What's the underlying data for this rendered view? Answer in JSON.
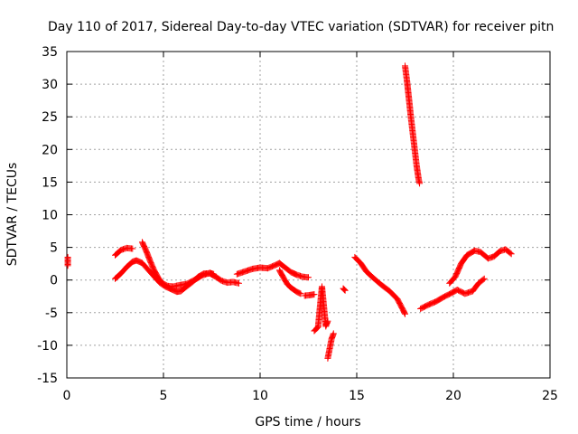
{
  "chart_data": {
    "type": "scatter",
    "title": "Day 110 of 2017, Sidereal Day-to-day VTEC variation (SDTVAR) for receiver pitn",
    "xlabel": "GPS time / hours",
    "ylabel": "SDTVAR / TECUs",
    "xlim": [
      0,
      25
    ],
    "ylim": [
      -15,
      35
    ],
    "xticks": [
      0,
      5,
      10,
      15,
      20,
      25
    ],
    "yticks": [
      -15,
      -10,
      -5,
      0,
      5,
      10,
      15,
      20,
      25,
      30,
      35
    ],
    "grid": true,
    "marker": "+",
    "color": "#ff0000",
    "series": [
      {
        "name": "SDTVAR",
        "segments": [
          [
            [
              0.05,
              3.5
            ],
            [
              0.05,
              2.2
            ]
          ],
          [
            [
              2.5,
              3.8
            ],
            [
              2.8,
              4.6
            ],
            [
              3.1,
              4.9
            ],
            [
              3.4,
              4.8
            ]
          ],
          [
            [
              2.5,
              0.2
            ],
            [
              2.8,
              1.0
            ],
            [
              3.1,
              2.0
            ],
            [
              3.4,
              2.8
            ],
            [
              3.6,
              3.0
            ],
            [
              3.9,
              2.6
            ],
            [
              4.2,
              1.6
            ],
            [
              4.5,
              0.6
            ],
            [
              4.8,
              -0.4
            ],
            [
              5.1,
              -1.0
            ],
            [
              5.4,
              -1.4
            ],
            [
              5.7,
              -1.8
            ],
            [
              5.9,
              -1.7
            ],
            [
              6.2,
              -1.0
            ],
            [
              6.5,
              -0.3
            ],
            [
              6.8,
              0.5
            ],
            [
              7.1,
              1.0
            ],
            [
              7.4,
              1.0
            ],
            [
              7.7,
              0.5
            ],
            [
              8.0,
              -0.1
            ],
            [
              8.3,
              -0.4
            ],
            [
              8.6,
              -0.3
            ],
            [
              8.9,
              -0.5
            ]
          ],
          [
            [
              3.9,
              5.8
            ],
            [
              4.1,
              4.5
            ],
            [
              4.3,
              3.0
            ],
            [
              4.5,
              1.6
            ],
            [
              4.7,
              0.5
            ],
            [
              4.9,
              -0.4
            ],
            [
              5.2,
              -0.9
            ],
            [
              5.5,
              -1.0
            ],
            [
              5.8,
              -0.8
            ],
            [
              6.2,
              -0.6
            ],
            [
              6.6,
              0.0
            ],
            [
              7.0,
              0.7
            ],
            [
              7.4,
              1.1
            ],
            [
              7.6,
              0.9
            ]
          ],
          [
            [
              8.8,
              0.9
            ],
            [
              9.2,
              1.3
            ],
            [
              9.6,
              1.7
            ],
            [
              10.0,
              1.9
            ],
            [
              10.4,
              1.8
            ],
            [
              10.8,
              2.3
            ],
            [
              11.0,
              2.6
            ],
            [
              11.3,
              1.9
            ],
            [
              11.6,
              1.2
            ],
            [
              11.9,
              0.8
            ],
            [
              12.2,
              0.5
            ],
            [
              12.5,
              0.4
            ]
          ],
          [
            [
              11.0,
              1.5
            ],
            [
              11.2,
              0.4
            ],
            [
              11.4,
              -0.6
            ],
            [
              11.6,
              -1.2
            ],
            [
              11.9,
              -1.8
            ],
            [
              12.1,
              -2.1
            ]
          ],
          [
            [
              12.3,
              -2.4
            ],
            [
              12.6,
              -2.3
            ],
            [
              12.8,
              -2.2
            ]
          ],
          [
            [
              12.8,
              -7.8
            ],
            [
              13.0,
              -7.2
            ],
            [
              13.2,
              -1.0
            ],
            [
              13.4,
              -7.1
            ],
            [
              13.5,
              -6.3
            ]
          ],
          [
            [
              13.5,
              -12.0
            ],
            [
              13.6,
              -10.5
            ],
            [
              13.7,
              -9.0
            ],
            [
              13.8,
              -8.2
            ]
          ],
          [
            [
              14.3,
              -1.3
            ],
            [
              14.4,
              -1.6
            ]
          ],
          [
            [
              14.9,
              3.5
            ],
            [
              15.2,
              2.6
            ],
            [
              15.5,
              1.3
            ],
            [
              15.9,
              0.2
            ],
            [
              16.3,
              -0.8
            ],
            [
              16.7,
              -1.7
            ],
            [
              17.1,
              -2.9
            ],
            [
              17.4,
              -4.6
            ],
            [
              17.5,
              -5.2
            ]
          ],
          [
            [
              17.5,
              32.8
            ],
            [
              17.6,
              30.5
            ],
            [
              17.7,
              27.8
            ],
            [
              17.8,
              25.0
            ],
            [
              17.9,
              22.5
            ],
            [
              18.0,
              20.0
            ],
            [
              18.1,
              17.5
            ],
            [
              18.2,
              15.5
            ],
            [
              18.25,
              14.8
            ]
          ],
          [
            [
              18.3,
              -4.4
            ],
            [
              18.7,
              -3.8
            ],
            [
              19.1,
              -3.3
            ],
            [
              19.5,
              -2.6
            ],
            [
              19.9,
              -2.0
            ],
            [
              20.2,
              -1.5
            ],
            [
              20.6,
              -2.1
            ],
            [
              21.0,
              -1.7
            ],
            [
              21.3,
              -0.5
            ],
            [
              21.6,
              0.2
            ]
          ],
          [
            [
              19.8,
              -0.5
            ],
            [
              20.1,
              0.5
            ],
            [
              20.4,
              2.5
            ],
            [
              20.7,
              3.8
            ],
            [
              21.1,
              4.5
            ],
            [
              21.4,
              4.3
            ],
            [
              21.8,
              3.3
            ],
            [
              22.1,
              3.6
            ],
            [
              22.4,
              4.4
            ],
            [
              22.7,
              4.7
            ],
            [
              23.0,
              4.0
            ]
          ]
        ]
      }
    ]
  }
}
